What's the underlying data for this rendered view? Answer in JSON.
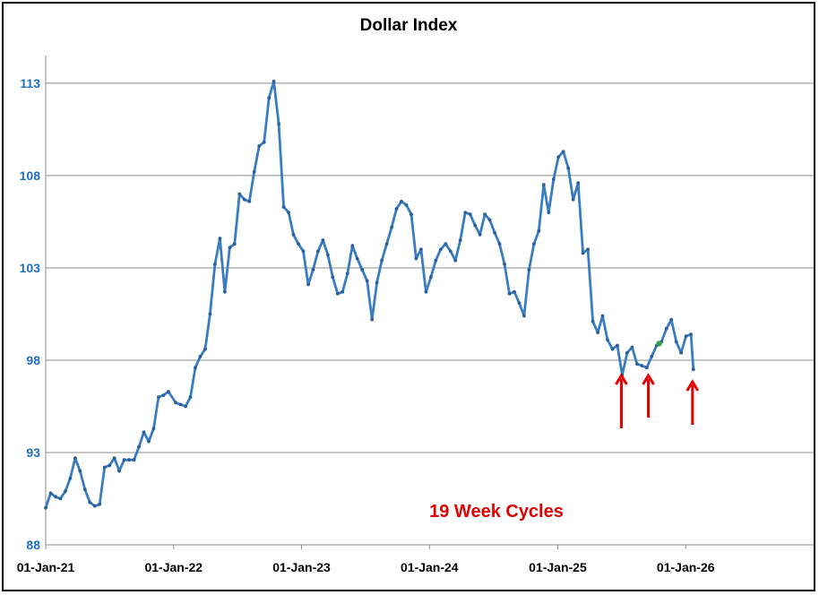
{
  "chart_data": {
    "type": "line",
    "title": "Dollar Index",
    "xlabel": "",
    "ylabel": "",
    "x_ticks": [
      "01-Jan-21",
      "01-Jan-22",
      "01-Jan-23",
      "01-Jan-24",
      "01-Jan-25",
      "01-Jan-26"
    ],
    "y_ticks": [
      88,
      93,
      98,
      103,
      108,
      113
    ],
    "ylim": [
      88,
      114.5
    ],
    "xlim": [
      "2021-01-01",
      "2027-01-01"
    ],
    "grid": "horizontal",
    "legend": "none",
    "series": [
      {
        "color": "#3A7CC1",
        "points": [
          [
            "2021-01-01",
            90.0
          ],
          [
            "2021-01-15",
            90.8
          ],
          [
            "2021-01-29",
            90.6
          ],
          [
            "2021-02-12",
            90.5
          ],
          [
            "2021-02-26",
            90.9
          ],
          [
            "2021-03-12",
            91.6
          ],
          [
            "2021-03-26",
            92.7
          ],
          [
            "2021-04-09",
            92.0
          ],
          [
            "2021-04-23",
            91.0
          ],
          [
            "2021-05-07",
            90.3
          ],
          [
            "2021-05-21",
            90.1
          ],
          [
            "2021-06-04",
            90.2
          ],
          [
            "2021-06-18",
            92.2
          ],
          [
            "2021-07-02",
            92.3
          ],
          [
            "2021-07-16",
            92.7
          ],
          [
            "2021-07-30",
            92.0
          ],
          [
            "2021-08-13",
            92.6
          ],
          [
            "2021-08-27",
            92.6
          ],
          [
            "2021-09-10",
            92.6
          ],
          [
            "2021-09-24",
            93.3
          ],
          [
            "2021-10-08",
            94.1
          ],
          [
            "2021-10-22",
            93.6
          ],
          [
            "2021-11-05",
            94.3
          ],
          [
            "2021-11-19",
            96.0
          ],
          [
            "2021-12-03",
            96.1
          ],
          [
            "2021-12-17",
            96.3
          ],
          [
            "2022-01-07",
            95.7
          ],
          [
            "2022-01-21",
            95.6
          ],
          [
            "2022-02-04",
            95.5
          ],
          [
            "2022-02-18",
            96.0
          ],
          [
            "2022-03-04",
            97.6
          ],
          [
            "2022-03-18",
            98.2
          ],
          [
            "2022-04-01",
            98.6
          ],
          [
            "2022-04-15",
            100.5
          ],
          [
            "2022-04-29",
            103.2
          ],
          [
            "2022-05-13",
            104.6
          ],
          [
            "2022-05-27",
            101.7
          ],
          [
            "2022-06-10",
            104.1
          ],
          [
            "2022-06-24",
            104.3
          ],
          [
            "2022-07-08",
            107.0
          ],
          [
            "2022-07-22",
            106.7
          ],
          [
            "2022-08-05",
            106.6
          ],
          [
            "2022-08-19",
            108.2
          ],
          [
            "2022-09-02",
            109.6
          ],
          [
            "2022-09-16",
            109.8
          ],
          [
            "2022-09-30",
            112.2
          ],
          [
            "2022-10-14",
            113.1
          ],
          [
            "2022-10-28",
            110.8
          ],
          [
            "2022-11-11",
            106.3
          ],
          [
            "2022-11-25",
            106.0
          ],
          [
            "2022-12-09",
            104.8
          ],
          [
            "2022-12-23",
            104.3
          ],
          [
            "2023-01-06",
            103.9
          ],
          [
            "2023-01-20",
            102.1
          ],
          [
            "2023-02-03",
            102.9
          ],
          [
            "2023-02-17",
            103.9
          ],
          [
            "2023-03-03",
            104.5
          ],
          [
            "2023-03-17",
            103.7
          ],
          [
            "2023-03-31",
            102.5
          ],
          [
            "2023-04-14",
            101.6
          ],
          [
            "2023-04-28",
            101.7
          ],
          [
            "2023-05-12",
            102.7
          ],
          [
            "2023-05-26",
            104.2
          ],
          [
            "2023-06-09",
            103.5
          ],
          [
            "2023-06-23",
            102.9
          ],
          [
            "2023-07-07",
            102.3
          ],
          [
            "2023-07-21",
            100.2
          ],
          [
            "2023-08-04",
            102.2
          ],
          [
            "2023-08-18",
            103.4
          ],
          [
            "2023-09-01",
            104.3
          ],
          [
            "2023-09-15",
            105.2
          ],
          [
            "2023-09-29",
            106.2
          ],
          [
            "2023-10-13",
            106.6
          ],
          [
            "2023-10-27",
            106.4
          ],
          [
            "2023-11-10",
            105.9
          ],
          [
            "2023-11-24",
            103.5
          ],
          [
            "2023-12-08",
            104.0
          ],
          [
            "2023-12-22",
            101.7
          ],
          [
            "2024-01-05",
            102.5
          ],
          [
            "2024-01-19",
            103.4
          ],
          [
            "2024-02-02",
            104.0
          ],
          [
            "2024-02-16",
            104.3
          ],
          [
            "2024-03-01",
            103.9
          ],
          [
            "2024-03-15",
            103.4
          ],
          [
            "2024-03-29",
            104.5
          ],
          [
            "2024-04-12",
            106.0
          ],
          [
            "2024-04-26",
            105.9
          ],
          [
            "2024-05-10",
            105.3
          ],
          [
            "2024-05-24",
            104.8
          ],
          [
            "2024-06-07",
            105.9
          ],
          [
            "2024-06-21",
            105.6
          ],
          [
            "2024-07-05",
            104.9
          ],
          [
            "2024-07-19",
            104.3
          ],
          [
            "2024-08-02",
            103.2
          ],
          [
            "2024-08-16",
            101.6
          ],
          [
            "2024-08-30",
            101.7
          ],
          [
            "2024-09-13",
            101.1
          ],
          [
            "2024-09-27",
            100.4
          ],
          [
            "2024-10-11",
            102.9
          ],
          [
            "2024-10-25",
            104.3
          ],
          [
            "2024-11-08",
            105.0
          ],
          [
            "2024-11-22",
            107.5
          ],
          [
            "2024-12-06",
            106.0
          ],
          [
            "2024-12-20",
            107.8
          ],
          [
            "2025-01-03",
            109.0
          ],
          [
            "2025-01-17",
            109.3
          ],
          [
            "2025-01-31",
            108.4
          ],
          [
            "2025-02-14",
            106.7
          ],
          [
            "2025-02-28",
            107.6
          ],
          [
            "2025-03-14",
            103.8
          ],
          [
            "2025-03-28",
            104.0
          ],
          [
            "2025-04-11",
            100.1
          ],
          [
            "2025-04-25",
            99.5
          ],
          [
            "2025-05-09",
            100.4
          ],
          [
            "2025-05-23",
            99.1
          ],
          [
            "2025-06-06",
            98.6
          ],
          [
            "2025-06-20",
            98.8
          ],
          [
            "2025-07-04",
            97.2
          ],
          [
            "2025-07-18",
            98.4
          ],
          [
            "2025-08-01",
            98.7
          ],
          [
            "2025-08-15",
            97.8
          ],
          [
            "2025-08-29",
            97.7
          ],
          [
            "2025-09-12",
            97.6
          ],
          [
            "2025-09-26",
            98.2
          ],
          [
            "2025-10-10",
            98.8
          ],
          [
            "2025-10-24",
            99.0
          ],
          [
            "2025-11-07",
            99.7
          ],
          [
            "2025-11-21",
            100.2
          ],
          [
            "2025-12-05",
            99.0
          ],
          [
            "2025-12-19",
            98.4
          ],
          [
            "2026-01-02",
            99.3
          ],
          [
            "2026-01-16",
            99.4
          ],
          [
            "2026-01-23",
            97.5
          ]
        ]
      }
    ],
    "highlight_point": {
      "date": "2025-10-17",
      "value": 98.9,
      "color": "#2E9E4F"
    },
    "annotations": [
      {
        "text": "19 Week Cycles",
        "color": "#E00000"
      }
    ],
    "cycle_lows": [
      "2025-07-04",
      "2025-09-19",
      "2026-01-23"
    ],
    "arrow_color": "#E00000"
  }
}
